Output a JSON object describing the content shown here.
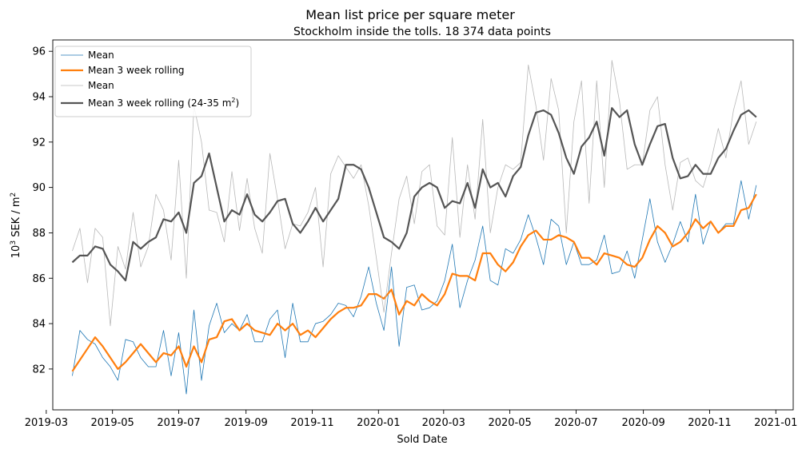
{
  "chart_data": {
    "type": "line",
    "title": "Mean list price per square meter",
    "subtitle": "Stockholm inside the tolls. 18 374 data points",
    "xlabel": "Sold Date",
    "ylabel_prefix": "10",
    "ylabel_sup": "3",
    "ylabel_mid": " SEK / m",
    "ylabel_sup2": "2",
    "xlim": [
      "2019-03-07",
      "2021-01-17"
    ],
    "ylim": [
      80.2,
      96.5
    ],
    "x_ticks": [
      "2019-03",
      "2019-05",
      "2019-07",
      "2019-09",
      "2019-11",
      "2020-01",
      "2020-03",
      "2020-05",
      "2020-07",
      "2020-09",
      "2020-11",
      "2021-01"
    ],
    "y_ticks": [
      82,
      84,
      86,
      88,
      90,
      92,
      94,
      96
    ],
    "legend": {
      "position": "top-left",
      "entries": [
        {
          "label": "Mean",
          "label_sup": "",
          "label_end": ""
        },
        {
          "label": "Mean 3 week rolling",
          "label_sup": "",
          "label_end": ""
        },
        {
          "label": "Mean",
          "label_sup": "",
          "label_end": ""
        },
        {
          "label": "Mean 3 week rolling (24-35 m",
          "label_sup": "2",
          "label_end": ")"
        }
      ]
    },
    "start_date": "2019-03-25",
    "step_days": 7,
    "series": [
      {
        "color": "#1f77b4",
        "width": 0.8,
        "values": [
          81.7,
          83.7,
          83.3,
          83.1,
          82.5,
          82.1,
          81.5,
          83.3,
          83.2,
          82.5,
          82.1,
          82.1,
          83.7,
          81.7,
          83.6,
          80.9,
          84.6,
          81.5,
          83.9,
          84.9,
          83.6,
          84.0,
          83.7,
          84.4,
          83.2,
          83.2,
          84.2,
          84.6,
          82.5,
          84.9,
          83.2,
          83.2,
          84.0,
          84.1,
          84.4,
          84.9,
          84.8,
          84.3,
          85.2,
          86.5,
          84.9,
          83.7,
          86.5,
          83.0,
          85.6,
          85.7,
          84.6,
          84.7,
          85.0,
          85.9,
          87.5,
          84.7,
          85.9,
          86.8,
          88.3,
          85.9,
          85.7,
          87.3,
          87.1,
          87.7,
          88.8,
          87.8,
          86.6,
          88.6,
          88.3,
          86.6,
          87.6,
          86.6,
          86.6,
          86.8,
          87.9,
          86.2,
          86.3,
          87.2,
          86.0,
          87.7,
          89.5,
          87.6,
          86.7,
          87.5,
          88.5,
          87.6,
          89.7,
          87.5,
          88.5,
          88.0,
          88.4,
          88.4,
          90.3,
          88.6,
          90.1
        ]
      },
      {
        "color": "#ff7f0e",
        "width": 2.2,
        "values": [
          81.9,
          82.4,
          82.9,
          83.4,
          83.0,
          82.5,
          82.0,
          82.3,
          82.7,
          83.1,
          82.7,
          82.3,
          82.7,
          82.6,
          83.0,
          82.1,
          83.0,
          82.3,
          83.3,
          83.4,
          84.1,
          84.2,
          83.7,
          84.0,
          83.7,
          83.6,
          83.5,
          84.0,
          83.7,
          84.0,
          83.5,
          83.7,
          83.4,
          83.8,
          84.2,
          84.5,
          84.7,
          84.7,
          84.8,
          85.3,
          85.3,
          85.1,
          85.5,
          84.4,
          85.0,
          84.8,
          85.3,
          85.0,
          84.8,
          85.3,
          86.2,
          86.1,
          86.1,
          85.9,
          87.1,
          87.1,
          86.6,
          86.3,
          86.7,
          87.4,
          87.9,
          88.1,
          87.7,
          87.7,
          87.9,
          87.8,
          87.6,
          86.9,
          86.9,
          86.6,
          87.1,
          87.0,
          86.9,
          86.6,
          86.5,
          86.9,
          87.7,
          88.3,
          88.0,
          87.4,
          87.6,
          88.0,
          88.6,
          88.2,
          88.5,
          88.0,
          88.3,
          88.3,
          89.0,
          89.1,
          89.7
        ]
      },
      {
        "color": "#b8b8b8",
        "width": 0.8,
        "values": [
          87.2,
          88.2,
          85.8,
          88.2,
          87.8,
          83.9,
          87.4,
          86.4,
          88.9,
          86.5,
          87.4,
          89.7,
          89.0,
          86.8,
          91.2,
          86.0,
          93.6,
          92.0,
          89.0,
          88.9,
          87.6,
          90.7,
          88.1,
          90.4,
          88.2,
          87.1,
          91.5,
          89.5,
          87.3,
          88.4,
          88.3,
          88.9,
          90.0,
          86.5,
          90.6,
          91.4,
          90.9,
          90.4,
          91.0,
          89.2,
          86.9,
          84.5,
          87.1,
          89.5,
          90.5,
          88.4,
          90.7,
          91.0,
          88.3,
          87.9,
          92.2,
          87.8,
          91.0,
          88.6,
          93.0,
          88.0,
          90.0,
          91.0,
          90.8,
          91.1,
          95.4,
          93.6,
          91.2,
          94.8,
          93.4,
          88.0,
          92.9,
          94.7,
          89.3,
          94.7,
          90.0,
          95.6,
          93.8,
          90.8,
          91.0,
          91.0,
          93.4,
          94.0,
          91.0,
          89.0,
          91.1,
          91.3,
          90.3,
          90.0,
          91.1,
          92.6,
          91.3,
          93.4,
          94.7,
          91.9,
          92.9
        ]
      },
      {
        "color": "#555555",
        "width": 2.2,
        "values": [
          86.7,
          87.0,
          87.0,
          87.4,
          87.3,
          86.6,
          86.3,
          85.9,
          87.6,
          87.3,
          87.6,
          87.8,
          88.6,
          88.5,
          88.9,
          88.0,
          90.2,
          90.5,
          91.5,
          90.0,
          88.5,
          89.0,
          88.8,
          89.7,
          88.8,
          88.5,
          88.9,
          89.4,
          89.5,
          88.4,
          88.0,
          88.5,
          89.1,
          88.5,
          89.0,
          89.5,
          91.0,
          91.0,
          90.8,
          90.0,
          88.9,
          87.8,
          87.6,
          87.3,
          88.0,
          89.6,
          90.0,
          90.2,
          90.0,
          89.1,
          89.4,
          89.3,
          90.2,
          89.1,
          90.8,
          90.0,
          90.2,
          89.6,
          90.5,
          90.9,
          92.3,
          93.3,
          93.4,
          93.2,
          92.4,
          91.3,
          90.6,
          91.8,
          92.2,
          92.9,
          91.4,
          93.5,
          93.1,
          93.4,
          91.9,
          91.0,
          91.9,
          92.7,
          92.8,
          91.3,
          90.4,
          90.5,
          91.0,
          90.6,
          90.6,
          91.3,
          91.7,
          92.5,
          93.2,
          93.4,
          93.1
        ]
      }
    ]
  }
}
